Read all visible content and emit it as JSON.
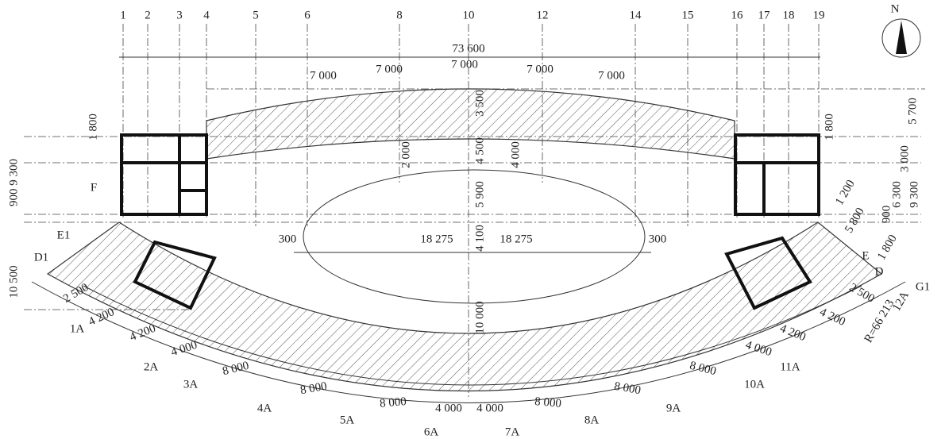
{
  "grid_labels": [
    "1",
    "2",
    "3",
    "4",
    "5",
    "6",
    "8",
    "10",
    "12",
    "14",
    "15",
    "16",
    "17",
    "18",
    "19"
  ],
  "north": "N",
  "dimensions": [
    "73 600",
    "7 000",
    "7 000",
    "7 000",
    "7 000",
    "7 000",
    "3 500",
    "4 500",
    "5 900",
    "4 100",
    "10 000",
    "2 000",
    "4 000",
    "18 275",
    "18 275",
    "300",
    "300",
    "1 800",
    "900 9 300",
    "10 500",
    "5 700",
    "1 800",
    "3 000",
    "6 300",
    "9 300",
    "900",
    "1 200",
    "5 800",
    "1 800",
    "R=66 213"
  ],
  "axis_tags": [
    "F",
    "E1",
    "D1",
    "E",
    "D",
    "G1",
    "12A"
  ],
  "arc_dimensions": [
    "2 500",
    "4 200",
    "4 200",
    "4 000",
    "8 000",
    "8 000",
    "8 000",
    "4 000",
    "4 000",
    "8 000",
    "8 000",
    "8 000",
    "4 000",
    "4 200",
    "4 200",
    "2 500"
  ],
  "arc_labels": [
    "1A",
    "2A",
    "3A",
    "4A",
    "5A",
    "6A",
    "7A",
    "8A",
    "9A",
    "10A",
    "11A"
  ]
}
